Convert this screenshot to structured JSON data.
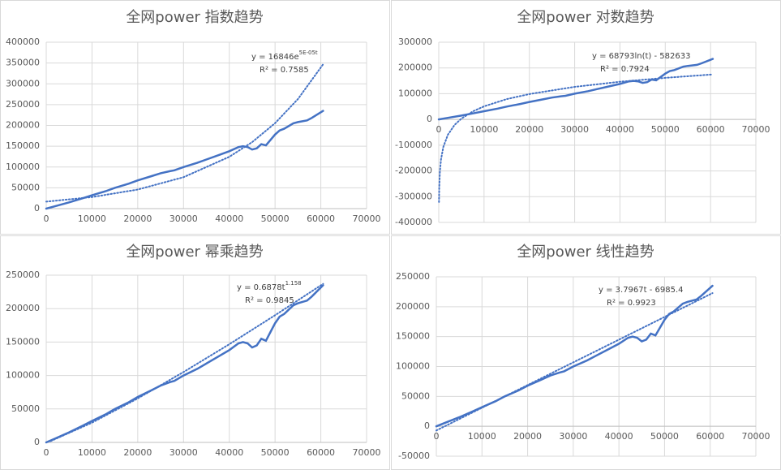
{
  "chart_data": [
    {
      "type": "line",
      "title": "全网power 指数趋势",
      "equation": {
        "text": "y = 16846e",
        "superscript": "5E-05t"
      },
      "r_squared": "R² = 0.7585",
      "xlim": [
        0,
        70000
      ],
      "xticks": [
        0,
        10000,
        20000,
        30000,
        40000,
        50000,
        60000,
        70000
      ],
      "ylim": [
        0,
        400000
      ],
      "yticks": [
        0,
        50000,
        100000,
        150000,
        200000,
        250000,
        300000,
        350000,
        400000
      ],
      "grid": true,
      "series": [
        {
          "color": "#4472c4",
          "line_style": "solid",
          "x": [
            0,
            2000,
            5000,
            8000,
            10000,
            13000,
            15000,
            18000,
            20000,
            23000,
            25000,
            27000,
            28000,
            30000,
            33000,
            35000,
            38000,
            40000,
            42000,
            43000,
            44000,
            45000,
            46000,
            47000,
            48000,
            49000,
            50000,
            51000,
            52000,
            54000,
            55000,
            57000,
            58000,
            60500
          ],
          "values": [
            0,
            6000,
            15000,
            25000,
            32000,
            42000,
            50000,
            60000,
            68000,
            78000,
            85000,
            90000,
            92000,
            100000,
            110000,
            118000,
            130000,
            138000,
            148000,
            150000,
            148000,
            142000,
            145000,
            155000,
            152000,
            165000,
            178000,
            188000,
            192000,
            205000,
            208000,
            212000,
            218000,
            235000
          ]
        },
        {
          "color": "#4472c4",
          "line_style": "dotted",
          "x": [
            0,
            10000,
            20000,
            30000,
            40000,
            45000,
            50000,
            55000,
            60500
          ],
          "values": [
            16846,
            27775,
            45790,
            75490,
            124470,
            159800,
            205200,
            263400,
            347000
          ]
        }
      ]
    },
    {
      "type": "line",
      "title": "全网power 对数趋势",
      "equation": {
        "text": "y = 68793ln(t) - 582633"
      },
      "r_squared": "R² = 0.7924",
      "xlim": [
        0,
        70000
      ],
      "xticks": [
        0,
        10000,
        20000,
        30000,
        40000,
        50000,
        60000,
        70000
      ],
      "ylim": [
        -400000,
        300000
      ],
      "yticks": [
        -400000,
        -300000,
        -200000,
        -100000,
        0,
        100000,
        200000,
        300000
      ],
      "grid": true,
      "series": [
        {
          "color": "#4472c4",
          "line_style": "solid",
          "x": [
            0,
            2000,
            5000,
            8000,
            10000,
            13000,
            15000,
            18000,
            20000,
            23000,
            25000,
            27000,
            28000,
            30000,
            33000,
            35000,
            38000,
            40000,
            42000,
            43000,
            44000,
            45000,
            46000,
            47000,
            48000,
            49000,
            50000,
            51000,
            52000,
            54000,
            55000,
            57000,
            58000,
            60500
          ],
          "values": [
            0,
            6000,
            15000,
            25000,
            32000,
            42000,
            50000,
            60000,
            68000,
            78000,
            85000,
            90000,
            92000,
            100000,
            110000,
            118000,
            130000,
            138000,
            148000,
            150000,
            148000,
            142000,
            145000,
            155000,
            152000,
            165000,
            178000,
            188000,
            192000,
            205000,
            208000,
            212000,
            218000,
            235000
          ]
        },
        {
          "color": "#4472c4",
          "line_style": "dotted",
          "x": [
            45,
            100,
            250,
            500,
            1000,
            2000,
            3500,
            5000,
            7500,
            10000,
            15000,
            20000,
            30000,
            40000,
            50000,
            60500
          ],
          "values": [
            -320760,
            -265830,
            -202800,
            -155000,
            -107420,
            -59740,
            -21240,
            3290,
            31190,
            50970,
            78870,
            98660,
            126550,
            146340,
            161690,
            174800
          ]
        }
      ]
    },
    {
      "type": "line",
      "title": "全网power 幂乘趋势",
      "equation": {
        "text": "y = 0.6878t",
        "superscript": "1.158"
      },
      "r_squared": "R² = 0.9845",
      "xlim": [
        0,
        70000
      ],
      "xticks": [
        0,
        10000,
        20000,
        30000,
        40000,
        50000,
        60000,
        70000
      ],
      "ylim": [
        0,
        250000
      ],
      "yticks": [
        0,
        50000,
        100000,
        150000,
        200000,
        250000
      ],
      "grid": true,
      "series": [
        {
          "color": "#4472c4",
          "line_style": "solid",
          "x": [
            0,
            2000,
            5000,
            8000,
            10000,
            13000,
            15000,
            18000,
            20000,
            23000,
            25000,
            27000,
            28000,
            30000,
            33000,
            35000,
            38000,
            40000,
            42000,
            43000,
            44000,
            45000,
            46000,
            47000,
            48000,
            49000,
            50000,
            51000,
            52000,
            54000,
            55000,
            57000,
            58000,
            60500
          ],
          "values": [
            0,
            6000,
            15000,
            25000,
            32000,
            42000,
            50000,
            60000,
            68000,
            78000,
            85000,
            90000,
            92000,
            100000,
            110000,
            118000,
            130000,
            138000,
            148000,
            150000,
            148000,
            142000,
            145000,
            155000,
            152000,
            165000,
            178000,
            188000,
            192000,
            205000,
            208000,
            212000,
            218000,
            235000
          ]
        },
        {
          "color": "#4472c4",
          "line_style": "dotted",
          "x": [
            1000,
            10000,
            20000,
            30000,
            40000,
            50000,
            60500
          ],
          "values": [
            2100,
            29480,
            65780,
            105200,
            146750,
            190000,
            237000
          ]
        }
      ]
    },
    {
      "type": "line",
      "title": "全网power 线性趋势",
      "equation": {
        "text": "y = 3.7967t - 6985.4"
      },
      "r_squared": "R² = 0.9923",
      "xlim": [
        0,
        70000
      ],
      "xticks": [
        0,
        10000,
        20000,
        30000,
        40000,
        50000,
        60000,
        70000
      ],
      "ylim": [
        -50000,
        250000
      ],
      "yticks": [
        -50000,
        0,
        50000,
        100000,
        150000,
        200000,
        250000
      ],
      "grid": true,
      "series": [
        {
          "color": "#4472c4",
          "line_style": "solid",
          "x": [
            0,
            2000,
            5000,
            8000,
            10000,
            13000,
            15000,
            18000,
            20000,
            23000,
            25000,
            27000,
            28000,
            30000,
            33000,
            35000,
            38000,
            40000,
            42000,
            43000,
            44000,
            45000,
            46000,
            47000,
            48000,
            49000,
            50000,
            51000,
            52000,
            54000,
            55000,
            57000,
            58000,
            60500
          ],
          "values": [
            0,
            6000,
            15000,
            25000,
            32000,
            42000,
            50000,
            60000,
            68000,
            78000,
            85000,
            90000,
            92000,
            100000,
            110000,
            118000,
            130000,
            138000,
            148000,
            150000,
            148000,
            142000,
            145000,
            155000,
            152000,
            165000,
            178000,
            188000,
            192000,
            205000,
            208000,
            212000,
            218000,
            235000
          ]
        },
        {
          "color": "#4472c4",
          "line_style": "dotted",
          "x": [
            0,
            60500
          ],
          "values": [
            -6985,
            222715
          ]
        }
      ]
    }
  ]
}
